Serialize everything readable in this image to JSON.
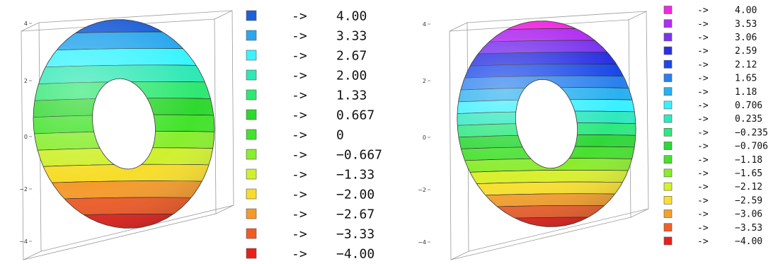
{
  "chart_data": [
    {
      "type": "contour-surface-3d",
      "surface": "torus",
      "title": "",
      "xlabel": "",
      "ylabel": "",
      "zlabel": "",
      "axis_ticks": [
        "4",
        "2",
        "0",
        "−2",
        "−4"
      ],
      "ylim": [
        -4,
        4
      ],
      "contour_levels": 13,
      "legend_placement": "right",
      "legend_arrow": "->",
      "legend": [
        {
          "color": "#1f5fd8",
          "label": "4.00"
        },
        {
          "color": "#2aa7ee",
          "label": "3.33"
        },
        {
          "color": "#39f4ff",
          "label": "2.67"
        },
        {
          "color": "#2fe8b5",
          "label": "2.00"
        },
        {
          "color": "#2ee872",
          "label": "1.33"
        },
        {
          "color": "#2ed82e",
          "label": "0.667"
        },
        {
          "color": "#42e32a",
          "label": "0"
        },
        {
          "color": "#88ee2e",
          "label": "−0.667"
        },
        {
          "color": "#cff02e",
          "label": "−1.33"
        },
        {
          "color": "#f7dd2a",
          "label": "−2.00"
        },
        {
          "color": "#f59a2a",
          "label": "−2.67"
        },
        {
          "color": "#f25a24",
          "label": "−3.33"
        },
        {
          "color": "#e8201a",
          "label": "−4.00"
        }
      ]
    },
    {
      "type": "contour-surface-3d",
      "surface": "torus",
      "title": "",
      "xlabel": "",
      "ylabel": "",
      "zlabel": "",
      "axis_ticks": [
        "4",
        "2",
        "0",
        "−2",
        "−4"
      ],
      "ylim": [
        -4,
        4
      ],
      "contour_levels": 18,
      "legend_placement": "right",
      "legend_arrow": "->",
      "legend": [
        {
          "color": "#f028e0",
          "label": "4.00"
        },
        {
          "color": "#b02ef0",
          "label": "3.53"
        },
        {
          "color": "#7a34ec",
          "label": "3.06"
        },
        {
          "color": "#2a30e0",
          "label": "2.59"
        },
        {
          "color": "#1a48e8",
          "label": "2.12"
        },
        {
          "color": "#2a80ee",
          "label": "1.65"
        },
        {
          "color": "#2ab0f0",
          "label": "1.18"
        },
        {
          "color": "#3af0ff",
          "label": "0.706"
        },
        {
          "color": "#30e8c0",
          "label": "0.235"
        },
        {
          "color": "#2ee880",
          "label": "−0.235"
        },
        {
          "color": "#2ed838",
          "label": "−0.706"
        },
        {
          "color": "#48e030",
          "label": "−1.18"
        },
        {
          "color": "#8aec2e",
          "label": "−1.65"
        },
        {
          "color": "#d8f02e",
          "label": "−2.12"
        },
        {
          "color": "#f8e030",
          "label": "−2.59"
        },
        {
          "color": "#f5a02c",
          "label": "−3.06"
        },
        {
          "color": "#f0602a",
          "label": "−3.53"
        },
        {
          "color": "#e8201a",
          "label": "−4.00"
        }
      ]
    }
  ]
}
